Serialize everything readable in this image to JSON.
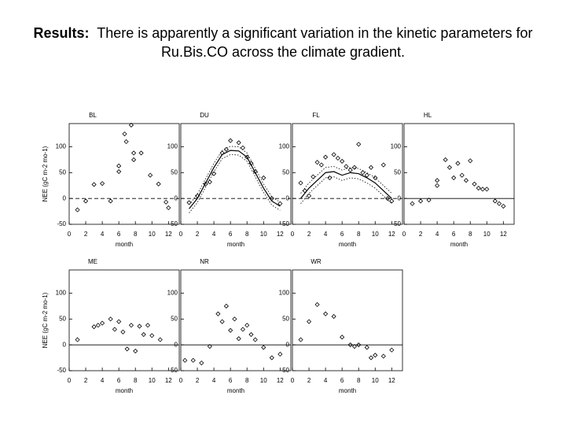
{
  "title_label": "Results:",
  "title_text": "There is apparently a significant variation in the kinetic parameters for Ru.Bis.CO across the climate gradient.",
  "chart_data": [
    {
      "type": "scatter",
      "title": "BL",
      "xlabel": "month",
      "ylabel": "NEE (gC m-2 mo-1)",
      "xlim": [
        0,
        13.3
      ],
      "ylim": [
        -50,
        145
      ],
      "xticks": [
        0,
        2,
        4,
        6,
        8,
        10,
        12
      ],
      "yticks": [
        -50,
        0,
        50,
        100
      ],
      "zero_line": "dashed",
      "series": [
        {
          "style": "markers",
          "x": [
            1,
            2,
            3,
            4,
            5,
            6,
            6,
            6.7,
            6.9,
            7.5,
            7.8,
            7.8,
            8.7,
            9.8,
            10.8,
            11.7,
            12
          ],
          "values": [
            -22,
            -5,
            27,
            29,
            -5,
            63,
            52,
            125,
            110,
            142,
            88,
            75,
            88,
            45,
            28,
            -7,
            -18
          ]
        }
      ]
    },
    {
      "type": "scatter",
      "title": "DU",
      "xlabel": "month",
      "xlim": [
        0,
        13.3
      ],
      "ylim": [
        -50,
        145
      ],
      "xticks": [
        0,
        2,
        4,
        6,
        8,
        10,
        12
      ],
      "yticks": [
        -50,
        0,
        50,
        100
      ],
      "zero_line": "dashed",
      "series": [
        {
          "style": "markers",
          "x": [
            1,
            2,
            3,
            3.5,
            4,
            5,
            5.5,
            6,
            7,
            7.5,
            8,
            8.5,
            9,
            10,
            11,
            12
          ],
          "values": [
            -8,
            5,
            28,
            32,
            48,
            88,
            95,
            112,
            108,
            98,
            80,
            68,
            52,
            40,
            0,
            -10
          ]
        },
        {
          "style": "solid",
          "x": [
            1,
            2,
            3,
            4,
            5,
            6,
            7,
            8,
            9,
            10,
            11,
            12
          ],
          "values": [
            -20,
            0,
            30,
            60,
            85,
            93,
            92,
            80,
            50,
            20,
            -5,
            -15
          ]
        },
        {
          "style": "dotted",
          "x": [
            1,
            2,
            3,
            4,
            5,
            6,
            7,
            8,
            9,
            10,
            11,
            12
          ],
          "values": [
            -12,
            8,
            38,
            68,
            93,
            101,
            100,
            88,
            58,
            28,
            3,
            -7
          ]
        },
        {
          "style": "dotted",
          "x": [
            1,
            2,
            3,
            4,
            5,
            6,
            7,
            8,
            9,
            10,
            11,
            12
          ],
          "values": [
            -28,
            -8,
            22,
            52,
            77,
            85,
            84,
            72,
            42,
            12,
            -13,
            -23
          ]
        }
      ]
    },
    {
      "type": "scatter",
      "title": "FL",
      "xlabel": "month",
      "xlim": [
        0,
        13.3
      ],
      "ylim": [
        -50,
        145
      ],
      "xticks": [
        0,
        2,
        4,
        6,
        8,
        10,
        12
      ],
      "yticks": [
        -50,
        0,
        50,
        100
      ],
      "zero_line": "dashed",
      "series": [
        {
          "style": "markers",
          "x": [
            1,
            1.5,
            2,
            2.5,
            3,
            3.5,
            4,
            4.5,
            5,
            5.5,
            6,
            6.5,
            7,
            7.5,
            8,
            8.5,
            9,
            9.5,
            10,
            11,
            11.5,
            12
          ],
          "values": [
            30,
            15,
            5,
            42,
            70,
            65,
            80,
            40,
            85,
            78,
            72,
            62,
            55,
            60,
            105,
            50,
            45,
            60,
            40,
            65,
            0,
            -5
          ]
        },
        {
          "style": "solid",
          "x": [
            1,
            2,
            3,
            4,
            5,
            6,
            7,
            8,
            9,
            10,
            11,
            12
          ],
          "values": [
            0,
            20,
            35,
            50,
            52,
            45,
            50,
            48,
            40,
            30,
            15,
            0
          ]
        },
        {
          "style": "dotted",
          "x": [
            1,
            2,
            3,
            4,
            5,
            6,
            7,
            8,
            9,
            10,
            11,
            12
          ],
          "values": [
            10,
            30,
            45,
            60,
            62,
            55,
            60,
            58,
            50,
            40,
            25,
            10
          ]
        },
        {
          "style": "dotted",
          "x": [
            1,
            2,
            3,
            4,
            5,
            6,
            7,
            8,
            9,
            10,
            11,
            12
          ],
          "values": [
            -10,
            10,
            25,
            40,
            42,
            35,
            40,
            38,
            30,
            20,
            5,
            -10
          ]
        }
      ]
    },
    {
      "type": "scatter",
      "title": "HL",
      "xlabel": "month",
      "xlim": [
        0,
        13.3
      ],
      "ylim": [
        -50,
        145
      ],
      "xticks": [
        0,
        2,
        4,
        6,
        8,
        10,
        12
      ],
      "yticks": [
        -50,
        0,
        50,
        100
      ],
      "zero_line": "solid",
      "series": [
        {
          "style": "markers",
          "x": [
            1,
            2,
            3,
            4,
            4,
            5,
            5.5,
            6,
            6.5,
            7,
            7.5,
            8,
            8.5,
            9,
            9.5,
            10,
            11,
            11.5,
            12
          ],
          "values": [
            -10,
            -5,
            -3,
            25,
            35,
            75,
            60,
            40,
            68,
            45,
            35,
            73,
            28,
            20,
            18,
            18,
            -5,
            -10,
            -15
          ]
        }
      ]
    },
    {
      "type": "scatter",
      "title": "ME",
      "xlabel": "month",
      "ylabel": "NEE (gC m-2 mo-1)",
      "xlim": [
        0,
        13.3
      ],
      "ylim": [
        -50,
        145
      ],
      "xticks": [
        0,
        2,
        4,
        6,
        8,
        10,
        12
      ],
      "yticks": [
        -50,
        0,
        50,
        100
      ],
      "zero_line": "solid",
      "series": [
        {
          "style": "markers",
          "x": [
            1,
            3,
            3.5,
            4,
            5,
            5.5,
            6,
            6.5,
            7,
            7.5,
            8,
            8.5,
            9,
            9.5,
            10,
            11
          ],
          "values": [
            10,
            35,
            38,
            42,
            50,
            30,
            45,
            25,
            -8,
            38,
            -12,
            36,
            20,
            38,
            18,
            10
          ]
        }
      ]
    },
    {
      "type": "scatter",
      "title": "NR",
      "xlabel": "month",
      "xlim": [
        0,
        13.3
      ],
      "ylim": [
        -50,
        145
      ],
      "xticks": [
        0,
        2,
        4,
        6,
        8,
        10,
        12
      ],
      "yticks": [
        -50,
        0,
        50,
        100
      ],
      "zero_line": "solid",
      "series": [
        {
          "style": "markers",
          "x": [
            0.5,
            1.5,
            2.5,
            3.5,
            4.5,
            5,
            5.5,
            6,
            6.5,
            7,
            7.5,
            8,
            8.5,
            9,
            10,
            11,
            12
          ],
          "values": [
            -30,
            -30,
            -35,
            -3,
            60,
            45,
            75,
            28,
            50,
            12,
            30,
            38,
            20,
            10,
            -5,
            -25,
            -18
          ]
        }
      ]
    },
    {
      "type": "scatter",
      "title": "WR",
      "xlabel": "month",
      "xlim": [
        0,
        13.3
      ],
      "ylim": [
        -50,
        145
      ],
      "xticks": [
        0,
        2,
        4,
        6,
        8,
        10,
        12
      ],
      "yticks": [
        -50,
        0,
        50,
        100
      ],
      "zero_line": "solid",
      "series": [
        {
          "style": "markers",
          "x": [
            1,
            2,
            3,
            4,
            5,
            6,
            7,
            7.5,
            8,
            9,
            9.5,
            10,
            11,
            12
          ],
          "values": [
            10,
            45,
            78,
            60,
            55,
            15,
            0,
            -3,
            0,
            -5,
            -25,
            -20,
            -22,
            -10
          ]
        }
      ]
    }
  ]
}
